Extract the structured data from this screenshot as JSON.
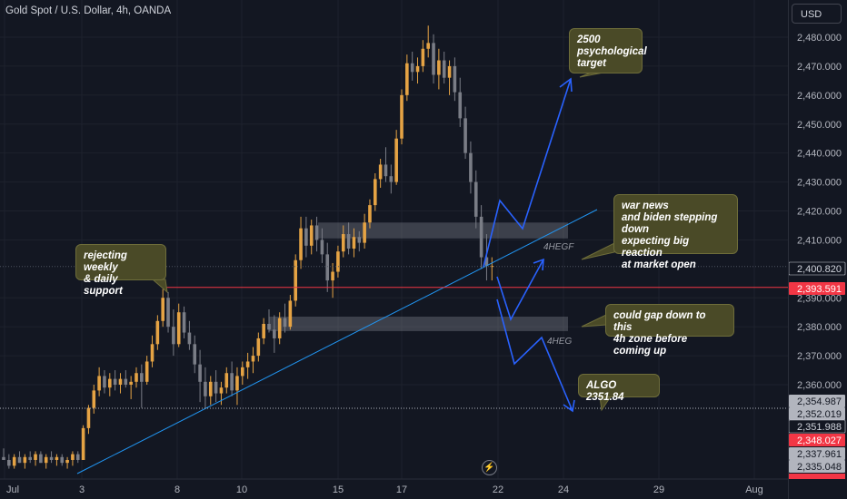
{
  "header": {
    "symbol_title": "Gold Spot / U.S. Dollar, 4h, OANDA"
  },
  "toolbar": {
    "currency_label": "USD"
  },
  "colors": {
    "bg": "#131722",
    "up": "#e5a344",
    "down": "#7a7d86",
    "grid": "#1e222d",
    "trendline": "#2196f3",
    "resistance": "#f23645",
    "arrows": "#2962ff",
    "zone": "#9598a1",
    "callout_bg": "#4a4a27"
  },
  "chart_data": {
    "type": "candlestick",
    "xlabel": "",
    "ylabel": "",
    "ylim": [
      2330.0,
      2487.0
    ],
    "x_ticks": [
      "Jul",
      "3",
      "8",
      "10",
      "15",
      "17",
      "22",
      "24",
      "29",
      "Aug"
    ],
    "y_ticks": [
      "2,480.000",
      "2,470.000",
      "2,460.000",
      "2,450.000",
      "2,440.000",
      "2,430.000",
      "2,420.000",
      "2,410.000",
      "2,390.000",
      "2,380.000",
      "2,370.000",
      "2,360.000"
    ],
    "price_labels": [
      {
        "text": "2,400.820",
        "style": "dark"
      },
      {
        "text": "2,393.591",
        "style": "red"
      },
      {
        "text": "2,354.987",
        "style": "grey"
      },
      {
        "text": "2,352.019",
        "style": "grey"
      },
      {
        "text": "2,351.988",
        "style": "dark"
      },
      {
        "text": "2,348.027",
        "style": "red"
      },
      {
        "text": "2,337.961",
        "style": "grey"
      },
      {
        "text": "2,335.048",
        "style": "grey"
      }
    ],
    "candles": [
      [
        2335,
        2338,
        2334,
        2334
      ],
      [
        2334,
        2336,
        2331,
        2332
      ],
      [
        2332,
        2336,
        2331,
        2335
      ],
      [
        2335,
        2337,
        2333,
        2333
      ],
      [
        2333,
        2336,
        2331,
        2335
      ],
      [
        2335,
        2337,
        2333,
        2334
      ],
      [
        2334,
        2337,
        2332,
        2336
      ],
      [
        2336,
        2337,
        2333,
        2333
      ],
      [
        2333,
        2336,
        2331,
        2335
      ],
      [
        2335,
        2337,
        2333,
        2334
      ],
      [
        2334,
        2336,
        2332,
        2335
      ],
      [
        2335,
        2336,
        2332,
        2333
      ],
      [
        2333,
        2335,
        2331,
        2334
      ],
      [
        2334,
        2337,
        2332,
        2336
      ],
      [
        2336,
        2337,
        2333,
        2334
      ],
      [
        2334,
        2346,
        2334,
        2345
      ],
      [
        2345,
        2353,
        2343,
        2352
      ],
      [
        2352,
        2360,
        2350,
        2358
      ],
      [
        2358,
        2366,
        2356,
        2363
      ],
      [
        2363,
        2365,
        2357,
        2359
      ],
      [
        2359,
        2364,
        2356,
        2362
      ],
      [
        2362,
        2365,
        2358,
        2360
      ],
      [
        2360,
        2364,
        2357,
        2362
      ],
      [
        2362,
        2365,
        2359,
        2360
      ],
      [
        2360,
        2363,
        2355,
        2361
      ],
      [
        2361,
        2366,
        2359,
        2364
      ],
      [
        2364,
        2367,
        2352,
        2361
      ],
      [
        2361,
        2370,
        2360,
        2368
      ],
      [
        2368,
        2377,
        2366,
        2374
      ],
      [
        2374,
        2384,
        2372,
        2382
      ],
      [
        2382,
        2393,
        2380,
        2390
      ],
      [
        2390,
        2392,
        2378,
        2380
      ],
      [
        2380,
        2386,
        2370,
        2374
      ],
      [
        2374,
        2388,
        2373,
        2385
      ],
      [
        2385,
        2387,
        2376,
        2378
      ],
      [
        2378,
        2382,
        2372,
        2374
      ],
      [
        2374,
        2377,
        2364,
        2367
      ],
      [
        2367,
        2372,
        2354,
        2361
      ],
      [
        2361,
        2366,
        2352,
        2356
      ],
      [
        2356,
        2363,
        2353,
        2361
      ],
      [
        2361,
        2365,
        2354,
        2357
      ],
      [
        2357,
        2361,
        2353,
        2359
      ],
      [
        2359,
        2366,
        2357,
        2364
      ],
      [
        2364,
        2368,
        2356,
        2358
      ],
      [
        2358,
        2366,
        2353,
        2363
      ],
      [
        2363,
        2368,
        2360,
        2366
      ],
      [
        2366,
        2371,
        2362,
        2368
      ],
      [
        2368,
        2373,
        2364,
        2370
      ],
      [
        2370,
        2378,
        2368,
        2376
      ],
      [
        2376,
        2383,
        2374,
        2381
      ],
      [
        2381,
        2386,
        2378,
        2379
      ],
      [
        2379,
        2384,
        2371,
        2376
      ],
      [
        2376,
        2385,
        2374,
        2383
      ],
      [
        2383,
        2388,
        2378,
        2380
      ],
      [
        2380,
        2391,
        2379,
        2389
      ],
      [
        2389,
        2405,
        2387,
        2403
      ],
      [
        2403,
        2418,
        2400,
        2414
      ],
      [
        2414,
        2418,
        2404,
        2408
      ],
      [
        2408,
        2417,
        2405,
        2415
      ],
      [
        2415,
        2418,
        2406,
        2410
      ],
      [
        2410,
        2414,
        2402,
        2405
      ],
      [
        2405,
        2409,
        2392,
        2396
      ],
      [
        2396,
        2402,
        2390,
        2399
      ],
      [
        2399,
        2408,
        2397,
        2406
      ],
      [
        2406,
        2415,
        2404,
        2412
      ],
      [
        2412,
        2416,
        2405,
        2407
      ],
      [
        2407,
        2414,
        2404,
        2411
      ],
      [
        2411,
        2413,
        2406,
        2409
      ],
      [
        2409,
        2419,
        2407,
        2416
      ],
      [
        2416,
        2424,
        2414,
        2422
      ],
      [
        2422,
        2433,
        2420,
        2431
      ],
      [
        2431,
        2438,
        2428,
        2436
      ],
      [
        2436,
        2442,
        2430,
        2432
      ],
      [
        2432,
        2436,
        2426,
        2430
      ],
      [
        2430,
        2448,
        2429,
        2445
      ],
      [
        2445,
        2462,
        2443,
        2460
      ],
      [
        2460,
        2474,
        2458,
        2471
      ],
      [
        2471,
        2475,
        2465,
        2468
      ],
      [
        2468,
        2473,
        2464,
        2470
      ],
      [
        2470,
        2479,
        2468,
        2476
      ],
      [
        2476,
        2484,
        2473,
        2478
      ],
      [
        2478,
        2481,
        2464,
        2467
      ],
      [
        2467,
        2476,
        2462,
        2472
      ],
      [
        2472,
        2475,
        2464,
        2466
      ],
      [
        2466,
        2472,
        2460,
        2470
      ],
      [
        2470,
        2473,
        2458,
        2461
      ],
      [
        2461,
        2466,
        2449,
        2452
      ],
      [
        2452,
        2456,
        2438,
        2440
      ],
      [
        2440,
        2444,
        2426,
        2430
      ],
      [
        2430,
        2434,
        2414,
        2418
      ],
      [
        2418,
        2422,
        2400,
        2404
      ],
      [
        2404,
        2412,
        2396,
        2401
      ],
      [
        2401,
        2404,
        2396,
        2401
      ]
    ],
    "levels": [
      {
        "label": "resistance",
        "price": 2393.59
      },
      {
        "label": "current",
        "price": 2400.82
      },
      {
        "label": "algo",
        "price": 2351.84
      }
    ],
    "zones": [
      {
        "label": "4HEGF",
        "from_price": 2410.5,
        "to_price": 2416.0
      },
      {
        "label": "4HEG",
        "from_price": 2378.5,
        "to_price": 2383.5
      }
    ],
    "annotations": [
      "rejecting weekly\n& daily support",
      "2500\npsychological\ntarget",
      "war news\nand biden stepping down\nexpecting big reaction\nat market open",
      "could gap down to this\n4h zone before coming up",
      "ALGO 2351.84"
    ]
  }
}
